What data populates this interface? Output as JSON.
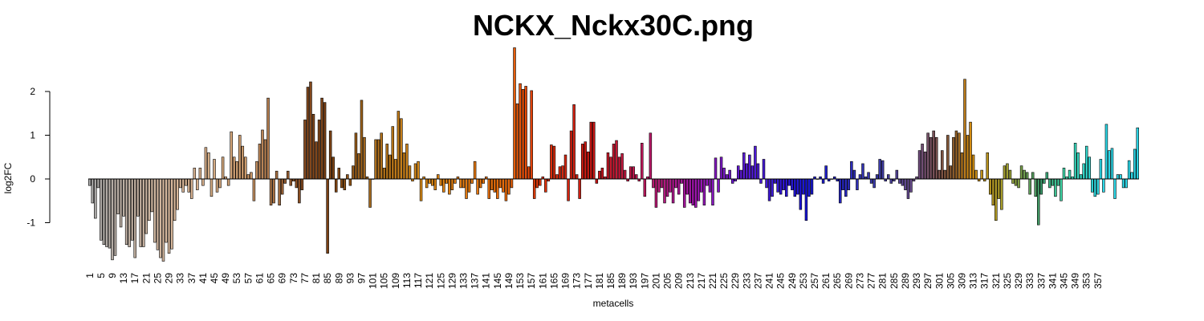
{
  "chart_data": {
    "type": "bar",
    "title": "NCKX_Nckx30C.png",
    "xlabel": "metacells",
    "ylabel": "log2FC",
    "ylim": [
      -2.0,
      3.0
    ],
    "yticks": [
      -1,
      0,
      1,
      2
    ],
    "x_tick_labels": [
      "1",
      "5",
      "9",
      "13",
      "17",
      "21",
      "25",
      "29",
      "33",
      "37",
      "41",
      "45",
      "49",
      "53",
      "57",
      "61",
      "65",
      "69",
      "73",
      "77",
      "81",
      "85",
      "89",
      "93",
      "97",
      "101",
      "105",
      "109",
      "113",
      "117",
      "121",
      "125",
      "129",
      "133",
      "137",
      "141",
      "145",
      "149",
      "153",
      "157",
      "161",
      "165",
      "169",
      "173",
      "177",
      "181",
      "185",
      "189",
      "193",
      "197",
      "201",
      "205",
      "209",
      "213",
      "217",
      "221",
      "225",
      "229",
      "233",
      "237",
      "241",
      "245",
      "249",
      "253",
      "257",
      "261",
      "265",
      "269",
      "273",
      "277",
      "281",
      "285",
      "289",
      "293",
      "297",
      "301",
      "305",
      "309",
      "313",
      "317",
      "321",
      "325",
      "329",
      "333",
      "337",
      "341",
      "345",
      "349",
      "353",
      "357"
    ],
    "categories_count": 358,
    "grid": false,
    "legend": "none",
    "color_stops": [
      {
        "at": 1,
        "color": "#a8a8a8"
      },
      {
        "at": 30,
        "color": "#d8b89c"
      },
      {
        "at": 55,
        "color": "#d2a070"
      },
      {
        "at": 75,
        "color": "#8a4e22"
      },
      {
        "at": 85,
        "color": "#7a4014"
      },
      {
        "at": 100,
        "color": "#a66a1c"
      },
      {
        "at": 118,
        "color": "#d98a16"
      },
      {
        "at": 148,
        "color": "#ea6a08"
      },
      {
        "at": 160,
        "color": "#e0340a"
      },
      {
        "at": 180,
        "color": "#c81414"
      },
      {
        "at": 196,
        "color": "#c01a5c"
      },
      {
        "at": 215,
        "color": "#a014b0"
      },
      {
        "at": 232,
        "color": "#5a1ad8"
      },
      {
        "at": 255,
        "color": "#1414d8"
      },
      {
        "at": 280,
        "color": "#3c3ca8"
      },
      {
        "at": 292,
        "color": "#6a4a88"
      },
      {
        "at": 306,
        "color": "#8a5a2a"
      },
      {
        "at": 312,
        "color": "#d48c10"
      },
      {
        "at": 325,
        "color": "#a0a030"
      },
      {
        "at": 337,
        "color": "#3c9c6c"
      },
      {
        "at": 345,
        "color": "#3cd8a8"
      },
      {
        "at": 358,
        "color": "#2cd8e8"
      }
    ],
    "values": [
      -0.15,
      -0.55,
      -0.9,
      -0.2,
      -1.4,
      -1.5,
      -1.55,
      -1.58,
      -1.85,
      -1.75,
      -0.8,
      -1.1,
      -0.85,
      -1.5,
      -1.55,
      -1.4,
      -1.8,
      -0.85,
      -1.55,
      -1.55,
      -1.25,
      -0.95,
      -0.75,
      -1.45,
      -1.62,
      -1.8,
      -1.88,
      -1.45,
      -1.7,
      -1.6,
      -0.95,
      -0.7,
      -0.2,
      -0.3,
      -0.15,
      -0.3,
      -0.45,
      0.25,
      -0.25,
      0.25,
      -0.15,
      0.72,
      0.6,
      -0.4,
      0.45,
      -0.3,
      -0.2,
      0.5,
      0.05,
      -0.15,
      1.08,
      0.5,
      0.4,
      1.0,
      0.75,
      0.5,
      0.1,
      0.15,
      -0.5,
      0.4,
      0.8,
      1.12,
      0.9,
      1.85,
      -0.6,
      -0.55,
      0.18,
      -0.6,
      -0.35,
      -0.1,
      0.18,
      -0.15,
      -0.05,
      -0.2,
      -0.55,
      -0.25,
      1.35,
      2.1,
      2.22,
      1.48,
      0.85,
      1.35,
      1.85,
      1.75,
      -1.7,
      1.1,
      0.5,
      -0.3,
      0.25,
      -0.2,
      -0.25,
      0.1,
      -0.15,
      0.3,
      1.05,
      0.58,
      1.8,
      0.95,
      0.05,
      -0.65,
      0.0,
      0.9,
      0.9,
      1.05,
      0.25,
      0.8,
      0.55,
      1.2,
      0.45,
      1.55,
      1.38,
      0.6,
      0.8,
      0.3,
      -0.05,
      0.35,
      0.4,
      -0.5,
      0.05,
      -0.2,
      -0.1,
      -0.15,
      -0.25,
      0.1,
      -0.15,
      -0.3,
      -0.1,
      -0.35,
      -0.25,
      -0.1,
      0.05,
      -0.2,
      -0.2,
      -0.45,
      -0.3,
      -0.1,
      0.4,
      -0.35,
      -0.2,
      -0.1,
      0.05,
      -0.45,
      -0.25,
      -0.3,
      -0.45,
      -0.2,
      -0.3,
      -0.5,
      -0.35,
      -0.2,
      3.0,
      1.72,
      2.18,
      2.05,
      2.12,
      0.28,
      2.02,
      -0.45,
      -0.2,
      -0.15,
      0.05,
      -0.3,
      -0.05,
      0.78,
      0.75,
      0.1,
      0.28,
      0.3,
      0.55,
      -0.5,
      1.1,
      1.7,
      0.1,
      -0.45,
      0.8,
      0.85,
      0.62,
      1.3,
      1.3,
      -0.1,
      0.18,
      0.25,
      0.05,
      0.6,
      0.5,
      0.8,
      0.88,
      0.5,
      0.58,
      0.2,
      -0.05,
      0.28,
      0.28,
      0.1,
      -0.05,
      0.82,
      -0.4,
      0.05,
      1.05,
      -0.2,
      -0.65,
      -0.3,
      -0.2,
      -0.55,
      -0.4,
      -0.3,
      -0.55,
      -0.2,
      -0.35,
      -0.1,
      -0.65,
      -0.35,
      -0.55,
      -0.6,
      -0.65,
      -0.5,
      -0.3,
      -0.6,
      -0.15,
      -0.3,
      -0.6,
      0.48,
      -0.3,
      0.5,
      0.25,
      0.1,
      0.2,
      -0.1,
      -0.05,
      0.3,
      0.2,
      0.6,
      0.35,
      0.55,
      0.3,
      0.75,
      0.35,
      -0.1,
      0.45,
      -0.2,
      -0.5,
      -0.4,
      -0.1,
      -0.3,
      -0.35,
      -0.25,
      -0.4,
      -0.15,
      -0.25,
      -0.4,
      -0.35,
      -0.7,
      -0.35,
      -0.95,
      -0.4,
      -0.35,
      0.05,
      0.0,
      0.05,
      -0.1,
      0.3,
      -0.05,
      0.0,
      0.05,
      -0.05,
      -0.55,
      -0.25,
      -0.4,
      -0.25,
      0.4,
      0.2,
      -0.25,
      0.1,
      0.35,
      0.05,
      0.15,
      -0.1,
      -0.2,
      0.1,
      0.45,
      0.42,
      -0.05,
      0.1,
      -0.1,
      -0.05,
      0.2,
      -0.1,
      -0.15,
      -0.25,
      -0.45,
      -0.3,
      -0.05,
      0.05,
      0.65,
      0.8,
      0.62,
      1.05,
      0.95,
      1.1,
      0.95,
      0.2,
      0.65,
      0.2,
      1.0,
      0.3,
      0.95,
      1.1,
      1.05,
      0.6,
      2.28,
      1.0,
      1.3,
      0.55,
      0.2,
      -0.05,
      0.2,
      -0.05,
      0.6,
      -0.35,
      -0.6,
      -0.95,
      -0.45,
      -0.7,
      0.3,
      0.35,
      0.2,
      -0.1,
      -0.15,
      -0.2,
      0.3,
      0.2,
      0.15,
      -0.35,
      0.15,
      -0.4,
      -1.05,
      -0.35,
      -0.1,
      0.15,
      -0.2,
      -0.15,
      -0.4,
      -0.15,
      -0.5,
      0.25,
      0.05,
      0.2,
      0.05,
      0.82,
      0.6,
      0.1,
      0.35,
      0.75,
      0.5,
      -0.3,
      -0.4,
      -0.35,
      0.45,
      -0.3,
      1.25,
      0.65,
      0.7,
      -0.45,
      0.1,
      0.1,
      -0.2,
      -0.2,
      0.42,
      0.15,
      0.68,
      1.17
    ]
  }
}
